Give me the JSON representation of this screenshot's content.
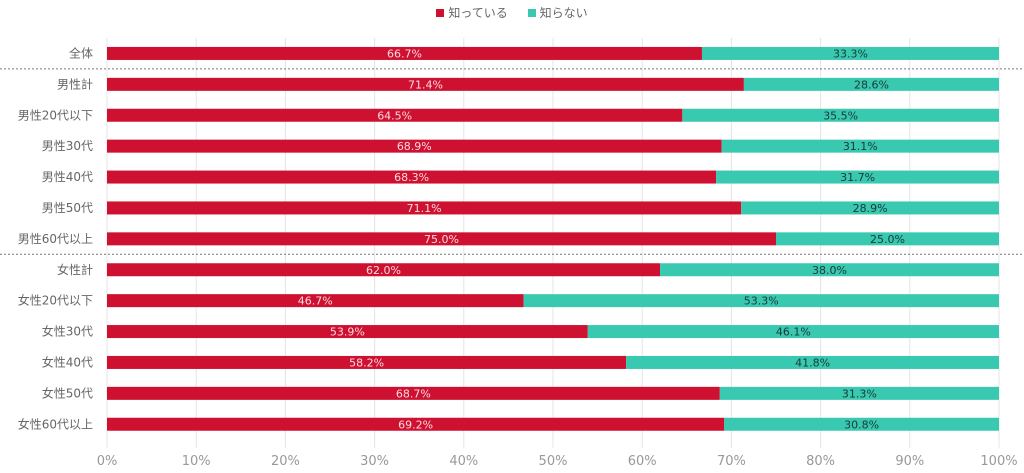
{
  "chart_data": {
    "type": "bar",
    "orientation": "horizontal",
    "stacked": "percent",
    "legend_position": "top-center",
    "categories": [
      "全体",
      "男性計",
      "男性20代以下",
      "男性30代",
      "男性40代",
      "男性50代",
      "男性60代以上",
      "女性計",
      "女性20代以下",
      "女性30代",
      "女性40代",
      "女性50代",
      "女性60代以上"
    ],
    "series": [
      {
        "name": "知っている",
        "color": "#CE1131",
        "label_color": "#FADADF",
        "values": [
          66.7,
          71.4,
          64.5,
          68.9,
          68.3,
          71.1,
          75.0,
          62.0,
          46.7,
          53.9,
          58.2,
          68.7,
          69.2
        ],
        "labels": [
          "66.7%",
          "71.4%",
          "64.5%",
          "68.9%",
          "68.3%",
          "71.1%",
          "75.0%",
          "62.0%",
          "46.7%",
          "53.9%",
          "58.2%",
          "68.7%",
          "69.2%"
        ]
      },
      {
        "name": "知らない",
        "color": "#38C9B0",
        "label_color": "#1a3a36",
        "values": [
          33.3,
          28.6,
          35.5,
          31.1,
          31.7,
          28.9,
          25.0,
          38.0,
          53.3,
          46.1,
          41.8,
          31.3,
          30.8
        ],
        "labels": [
          "33.3%",
          "28.6%",
          "35.5%",
          "31.1%",
          "31.7%",
          "28.9%",
          "25.0%",
          "38.0%",
          "53.3%",
          "46.1%",
          "41.8%",
          "31.3%",
          "30.8%"
        ]
      }
    ],
    "separators_after": [
      "全体",
      "男性60代以上"
    ],
    "xlim": [
      0,
      100
    ],
    "xticks": [
      "0%",
      "10%",
      "20%",
      "30%",
      "40%",
      "50%",
      "60%",
      "70%",
      "80%",
      "90%",
      "100%"
    ],
    "grid": true,
    "title": "",
    "xlabel": "",
    "ylabel": ""
  }
}
